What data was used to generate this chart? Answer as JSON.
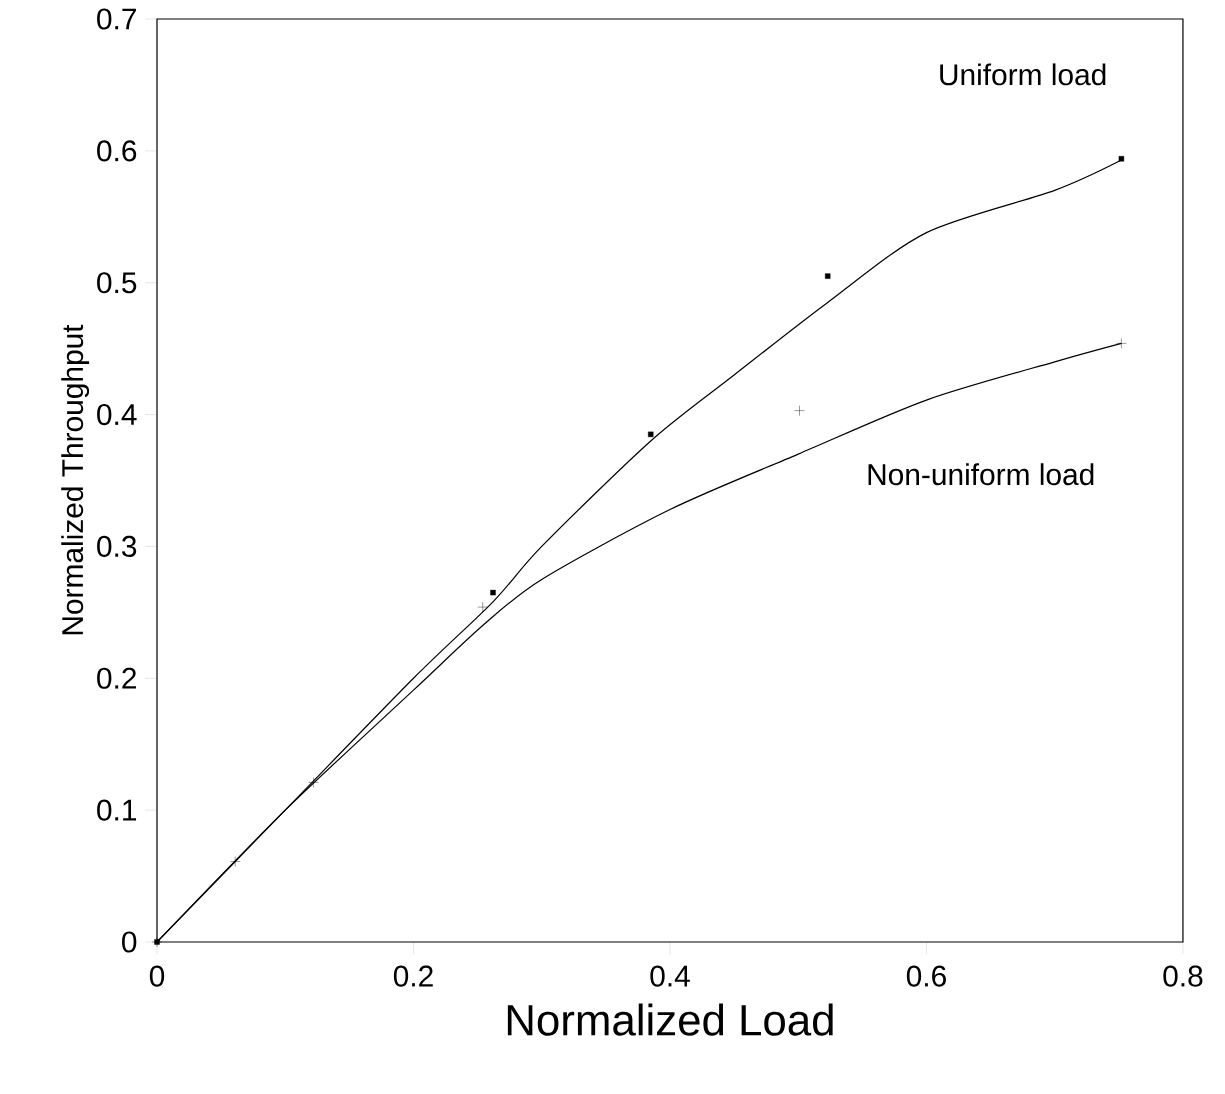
{
  "chart_data": {
    "type": "scatter",
    "xlabel": "Normalized Load",
    "ylabel": "Normalized Throughput",
    "xlim": [
      0,
      0.8
    ],
    "ylim": [
      0,
      0.7
    ],
    "xticks": [
      0,
      0.2,
      0.4,
      0.6,
      0.8
    ],
    "yticks": [
      0,
      0.1,
      0.2,
      0.3,
      0.4,
      0.5,
      0.6,
      0.7
    ],
    "grid": false,
    "series": [
      {
        "color": "#000000",
        "marker": "square",
        "x": [
          0,
          0.262,
          0.385,
          0.523,
          0.752
        ],
        "values": [
          0,
          0.265,
          0.385,
          0.505,
          0.594
        ]
      },
      {
        "color": "#000000",
        "marker": "cross",
        "x": [
          0,
          0.061,
          0.122,
          0.254,
          0.501,
          0.752
        ],
        "values": [
          0,
          0.061,
          0.121,
          0.254,
          0.403,
          0.454
        ]
      },
      {
        "type": "line",
        "color": "#000000",
        "line_style": "solid",
        "x": [
          0,
          0.1,
          0.2,
          0.262,
          0.3,
          0.385,
          0.45,
          0.523,
          0.6,
          0.7,
          0.752
        ],
        "values": [
          0,
          0.1,
          0.2,
          0.258,
          0.3,
          0.38,
          0.43,
          0.485,
          0.538,
          0.57,
          0.593
        ]
      },
      {
        "type": "line",
        "color": "#000000",
        "line_style": "solid",
        "x": [
          0,
          0.1,
          0.2,
          0.254,
          0.3,
          0.4,
          0.5,
          0.6,
          0.7,
          0.752
        ],
        "values": [
          0,
          0.1,
          0.191,
          0.24,
          0.275,
          0.328,
          0.37,
          0.411,
          0.44,
          0.454
        ]
      }
    ],
    "annotations": [
      "Uniform load",
      "Non-uniform load"
    ]
  }
}
